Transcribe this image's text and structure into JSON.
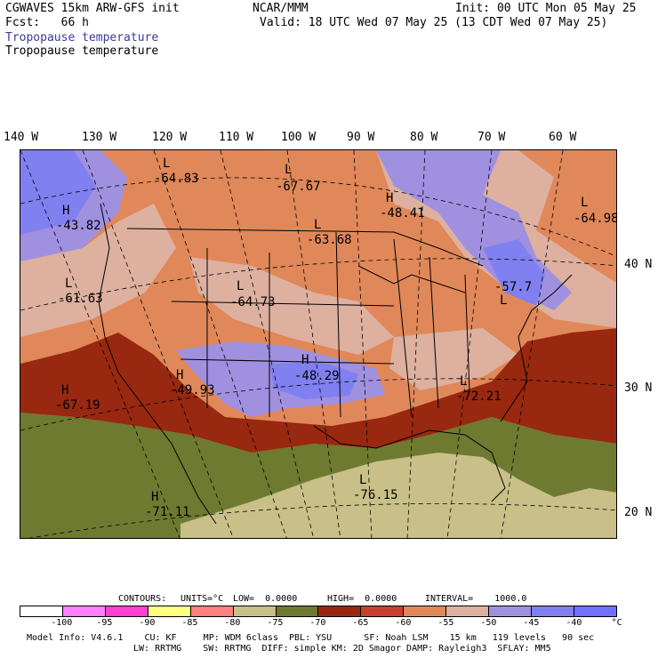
{
  "header": {
    "model": "CGWAVES 15km ARW-GFS init",
    "fcst": "Fcst:   66 h",
    "center": "NCAR/MMM",
    "init": "Init: 00 UTC Mon 05 May 25",
    "valid": "Valid: 18 UTC Wed 07 May 25 (13 CDT Wed 07 May 25)",
    "field_blue": "Tropopause temperature",
    "field_black": "Tropopause temperature"
  },
  "axes": {
    "longitudes": [
      "140 W",
      "130 W",
      "120 W",
      "110 W",
      "100 W",
      "90 W",
      "80 W",
      "70 W",
      "60 W"
    ],
    "latitudes": [
      "40 N",
      "30 N",
      "20 N"
    ]
  },
  "centers": [
    {
      "letter": "L",
      "value": "-64.83"
    },
    {
      "letter": "L",
      "value": "-67.67"
    },
    {
      "letter": "H",
      "value": "-48.41"
    },
    {
      "letter": "L",
      "value": "-64.98"
    },
    {
      "letter": "H",
      "value": "-43.82"
    },
    {
      "letter": "L",
      "value": "-63.68"
    },
    {
      "letter": "L",
      "value": "-61.63"
    },
    {
      "letter": "L",
      "value": "-64.73"
    },
    {
      "letter": "L",
      "value": "-57.7"
    },
    {
      "letter": "H",
      "value": "-48.29"
    },
    {
      "letter": "H",
      "value": "-49.93"
    },
    {
      "letter": "H",
      "value": "-67.19"
    },
    {
      "letter": "L",
      "value": "-72.21"
    },
    {
      "letter": "L",
      "value": "-76.15"
    },
    {
      "letter": "H",
      "value": "-71.11"
    }
  ],
  "contours_line": {
    "contours": "CONTOURS:",
    "units": "UNITS=°C",
    "low": "LOW=  0.0000",
    "high": "HIGH=  0.0000",
    "interval": "INTERVAL=    1000.0"
  },
  "colorbar": {
    "colors": [
      "#ffffff",
      "#ff80ff",
      "#ff40d0",
      "#ffff80",
      "#ff8080",
      "#c8c088",
      "#6e7a30",
      "#98280f",
      "#c84030",
      "#e0885a",
      "#ddb0a0",
      "#a090e0",
      "#8080f0",
      "#7070ff"
    ],
    "ticks": [
      "-100",
      "-95",
      "-90",
      "-85",
      "-80",
      "-75",
      "-70",
      "-65",
      "-60",
      "-55",
      "-50",
      "-45",
      "-40",
      "°C"
    ]
  },
  "footer": {
    "line1": "Model Info: V4.6.1    CU: KF     MP: WDM 6class  PBL: YSU      SF: Noah LSM    15 km   119 levels   90 sec",
    "line2": "LW: RRTMG    SW: RRTMG  DIFF: simple KM: 2D Smagor DAMP: Rayleigh3  SFLAY: MM5"
  }
}
